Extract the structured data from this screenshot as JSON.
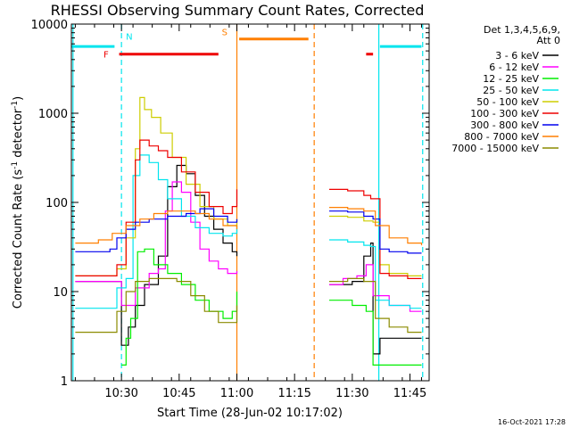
{
  "chart_data": {
    "type": "line",
    "title": "RHESSI Observing Summary Count Rates, Corrected",
    "xlabel": "Start Time (28-Jun-02 10:17:02)",
    "ylabel_main": "Corrected Count Rate (s",
    "ylabel_sup": "-1",
    "ylabel_mid": " detector",
    "ylabel_sup2": "-1",
    "ylabel_end": ")",
    "x_unit": "minutes",
    "xlim": [
      10.283,
      11.833
    ],
    "ylim": [
      1,
      10000
    ],
    "yscale": "log",
    "x_ticks": [
      {
        "t": 10.5,
        "label": "10:30"
      },
      {
        "t": 10.75,
        "label": "10:45"
      },
      {
        "t": 11.0,
        "label": "11:00"
      },
      {
        "t": 11.25,
        "label": "11:15"
      },
      {
        "t": 11.5,
        "label": "11:30"
      },
      {
        "t": 11.75,
        "label": "11:45"
      }
    ],
    "y_ticks": [
      {
        "v": 1,
        "label": "1"
      },
      {
        "v": 10,
        "label": "10"
      },
      {
        "v": 100,
        "label": "100"
      },
      {
        "v": 1000,
        "label": "1000"
      },
      {
        "v": 10000,
        "label": "10000"
      }
    ],
    "legend_header": [
      "Det 1,3,4,5,6,9,",
      "Att 0"
    ],
    "legend_placement": "right",
    "series": [
      {
        "name": "3 - 6 keV",
        "color": "#000000",
        "points": [
          [
            10.3,
            13
          ],
          [
            10.45,
            13
          ],
          [
            10.5,
            2.5
          ],
          [
            10.53,
            4
          ],
          [
            10.56,
            7
          ],
          [
            10.6,
            12
          ],
          [
            10.66,
            25
          ],
          [
            10.7,
            150
          ],
          [
            10.74,
            260
          ],
          [
            10.78,
            210
          ],
          [
            10.82,
            120
          ],
          [
            10.86,
            70
          ],
          [
            10.9,
            50
          ],
          [
            10.94,
            35
          ],
          [
            10.98,
            28
          ],
          [
            11.0,
            25
          ],
          [
            11.0,
            null
          ],
          [
            11.4,
            null
          ],
          [
            11.4,
            12
          ],
          [
            11.5,
            13
          ],
          [
            11.55,
            25
          ],
          [
            11.58,
            35
          ],
          [
            11.59,
            2
          ],
          [
            11.62,
            3
          ],
          [
            11.66,
            3
          ],
          [
            11.7,
            3
          ],
          [
            11.74,
            3
          ],
          [
            11.8,
            3
          ]
        ]
      },
      {
        "name": "6 - 12 keV",
        "color": "#ff00ff",
        "points": [
          [
            10.3,
            13
          ],
          [
            10.45,
            13
          ],
          [
            10.5,
            7
          ],
          [
            10.56,
            11
          ],
          [
            10.62,
            16
          ],
          [
            10.66,
            18
          ],
          [
            10.69,
            80
          ],
          [
            10.72,
            170
          ],
          [
            10.76,
            130
          ],
          [
            10.8,
            60
          ],
          [
            10.84,
            30
          ],
          [
            10.88,
            22
          ],
          [
            10.92,
            18
          ],
          [
            10.96,
            16
          ],
          [
            11.0,
            17
          ],
          [
            11.0,
            null
          ],
          [
            11.4,
            null
          ],
          [
            11.4,
            12
          ],
          [
            11.46,
            14
          ],
          [
            11.52,
            15
          ],
          [
            11.56,
            20
          ],
          [
            11.59,
            9
          ],
          [
            11.66,
            7
          ],
          [
            11.75,
            6
          ],
          [
            11.8,
            6
          ]
        ]
      },
      {
        "name": "12 - 25 keV",
        "color": "#00ee00",
        "points": [
          [
            10.5,
            1.5
          ],
          [
            10.52,
            3
          ],
          [
            10.54,
            5
          ],
          [
            10.57,
            28
          ],
          [
            10.6,
            30
          ],
          [
            10.64,
            20
          ],
          [
            10.7,
            16
          ],
          [
            10.76,
            12
          ],
          [
            10.82,
            8
          ],
          [
            10.88,
            6
          ],
          [
            10.94,
            5
          ],
          [
            10.98,
            6
          ],
          [
            11.0,
            10
          ],
          [
            11.0,
            null
          ],
          [
            11.4,
            null
          ],
          [
            11.4,
            8
          ],
          [
            11.5,
            7
          ],
          [
            11.56,
            6
          ],
          [
            11.59,
            1.5
          ],
          [
            11.66,
            1.5
          ],
          [
            11.74,
            1.5
          ],
          [
            11.8,
            1.5
          ]
        ]
      },
      {
        "name": "25 - 50 keV",
        "color": "#00e5ee",
        "points": [
          [
            10.3,
            6.5
          ],
          [
            10.45,
            6.5
          ],
          [
            10.48,
            11
          ],
          [
            10.52,
            14
          ],
          [
            10.55,
            200
          ],
          [
            10.58,
            340
          ],
          [
            10.62,
            280
          ],
          [
            10.66,
            180
          ],
          [
            10.7,
            110
          ],
          [
            10.76,
            70
          ],
          [
            10.82,
            52
          ],
          [
            10.88,
            45
          ],
          [
            10.94,
            42
          ],
          [
            10.98,
            45
          ],
          [
            11.0,
            55
          ],
          [
            11.0,
            null
          ],
          [
            11.4,
            null
          ],
          [
            11.4,
            38
          ],
          [
            11.48,
            36
          ],
          [
            11.55,
            33
          ],
          [
            11.58,
            32
          ],
          [
            11.6,
            8
          ],
          [
            11.66,
            7
          ],
          [
            11.75,
            6.5
          ],
          [
            11.8,
            6.5
          ]
        ]
      },
      {
        "name": "50 - 100 keV",
        "color": "#cdcd00",
        "points": [
          [
            10.3,
            15
          ],
          [
            10.45,
            15
          ],
          [
            10.48,
            18
          ],
          [
            10.52,
            40
          ],
          [
            10.56,
            400
          ],
          [
            10.58,
            1500
          ],
          [
            10.6,
            1100
          ],
          [
            10.63,
            900
          ],
          [
            10.67,
            600
          ],
          [
            10.72,
            320
          ],
          [
            10.78,
            160
          ],
          [
            10.84,
            90
          ],
          [
            10.9,
            65
          ],
          [
            10.96,
            55
          ],
          [
            11.0,
            65
          ],
          [
            11.0,
            null
          ],
          [
            11.4,
            null
          ],
          [
            11.4,
            70
          ],
          [
            11.48,
            68
          ],
          [
            11.55,
            62
          ],
          [
            11.59,
            60
          ],
          [
            11.62,
            20
          ],
          [
            11.66,
            16
          ],
          [
            11.74,
            15
          ],
          [
            11.8,
            15
          ]
        ]
      },
      {
        "name": "100 - 300 keV",
        "color": "#ee0000",
        "points": [
          [
            10.3,
            15
          ],
          [
            10.45,
            15
          ],
          [
            10.48,
            20
          ],
          [
            10.52,
            60
          ],
          [
            10.56,
            300
          ],
          [
            10.58,
            500
          ],
          [
            10.62,
            430
          ],
          [
            10.66,
            380
          ],
          [
            10.7,
            320
          ],
          [
            10.76,
            220
          ],
          [
            10.82,
            130
          ],
          [
            10.88,
            90
          ],
          [
            10.94,
            75
          ],
          [
            10.98,
            90
          ],
          [
            11.0,
            140
          ],
          [
            11.0,
            null
          ],
          [
            11.4,
            null
          ],
          [
            11.4,
            140
          ],
          [
            11.48,
            135
          ],
          [
            11.55,
            120
          ],
          [
            11.58,
            110
          ],
          [
            11.62,
            16
          ],
          [
            11.66,
            15
          ],
          [
            11.74,
            14
          ],
          [
            11.8,
            14
          ]
        ]
      },
      {
        "name": "300 - 800 keV",
        "color": "#0000ee",
        "points": [
          [
            10.3,
            28
          ],
          [
            10.45,
            30
          ],
          [
            10.48,
            40
          ],
          [
            10.52,
            50
          ],
          [
            10.56,
            60
          ],
          [
            10.62,
            65
          ],
          [
            10.7,
            70
          ],
          [
            10.78,
            75
          ],
          [
            10.84,
            85
          ],
          [
            10.9,
            70
          ],
          [
            10.96,
            60
          ],
          [
            11.0,
            65
          ],
          [
            11.0,
            null
          ],
          [
            11.4,
            null
          ],
          [
            11.4,
            80
          ],
          [
            11.48,
            78
          ],
          [
            11.55,
            70
          ],
          [
            11.59,
            65
          ],
          [
            11.62,
            30
          ],
          [
            11.66,
            28
          ],
          [
            11.74,
            27
          ],
          [
            11.8,
            27
          ]
        ]
      },
      {
        "name": "800 - 7000 keV",
        "color": "#ff7f00",
        "points": [
          [
            10.3,
            35
          ],
          [
            10.4,
            38
          ],
          [
            10.46,
            45
          ],
          [
            10.52,
            55
          ],
          [
            10.58,
            65
          ],
          [
            10.64,
            75
          ],
          [
            10.7,
            80
          ],
          [
            10.76,
            80
          ],
          [
            10.82,
            75
          ],
          [
            10.88,
            65
          ],
          [
            10.94,
            55
          ],
          [
            11.0,
            50
          ],
          [
            11.0,
            null
          ],
          [
            11.4,
            null
          ],
          [
            11.4,
            88
          ],
          [
            11.48,
            85
          ],
          [
            11.55,
            80
          ],
          [
            11.6,
            55
          ],
          [
            11.66,
            40
          ],
          [
            11.74,
            35
          ],
          [
            11.8,
            33
          ]
        ]
      },
      {
        "name": "7000 - 15000 keV",
        "color": "#8b8b00",
        "points": [
          [
            10.3,
            3.5
          ],
          [
            10.45,
            3.5
          ],
          [
            10.48,
            6
          ],
          [
            10.52,
            10
          ],
          [
            10.56,
            13
          ],
          [
            10.62,
            14
          ],
          [
            10.68,
            14
          ],
          [
            10.74,
            13
          ],
          [
            10.8,
            9
          ],
          [
            10.86,
            6
          ],
          [
            10.92,
            4.5
          ],
          [
            10.96,
            4.5
          ],
          [
            11.0,
            7
          ],
          [
            11.0,
            null
          ],
          [
            11.4,
            null
          ],
          [
            11.4,
            13
          ],
          [
            11.48,
            14
          ],
          [
            11.55,
            13
          ],
          [
            11.6,
            5
          ],
          [
            11.66,
            4
          ],
          [
            11.74,
            3.5
          ],
          [
            11.8,
            3.5
          ]
        ]
      }
    ],
    "attenuator_bars": [
      {
        "color": "#00e5ee",
        "y": 5600,
        "segments": [
          [
            10.283,
            10.47
          ],
          [
            11.62,
            11.8
          ]
        ]
      },
      {
        "color": "#ee0000",
        "y": 4600,
        "segments": [
          [
            10.49,
            10.92
          ],
          [
            11.56,
            11.59
          ]
        ]
      },
      {
        "color": "#ff7f00",
        "y": 6800,
        "segments": [
          [
            11.01,
            11.31
          ]
        ]
      }
    ],
    "markers": [
      {
        "label": "N",
        "t": 10.5,
        "color": "#00e5ee",
        "y": 7300
      },
      {
        "label": "F",
        "t": 10.46,
        "color": "#ee0000",
        "y": 4600
      },
      {
        "label": "S",
        "t": 10.975,
        "color": "#ff7f00",
        "y": 8200
      }
    ],
    "vertical_lines": [
      {
        "t": 10.29,
        "color": "#00e5ee",
        "style": "solid"
      },
      {
        "t": 10.5,
        "color": "#00e5ee",
        "style": "dashed"
      },
      {
        "t": 11.0,
        "color": "#ff7f00",
        "style": "solid"
      },
      {
        "t": 11.335,
        "color": "#ff7f00",
        "style": "dashed"
      },
      {
        "t": 11.615,
        "color": "#00e5ee",
        "style": "solid"
      },
      {
        "t": 11.805,
        "color": "#00e5ee",
        "style": "dashed"
      }
    ],
    "timestamp": "16-Oct-2021 17:28"
  }
}
